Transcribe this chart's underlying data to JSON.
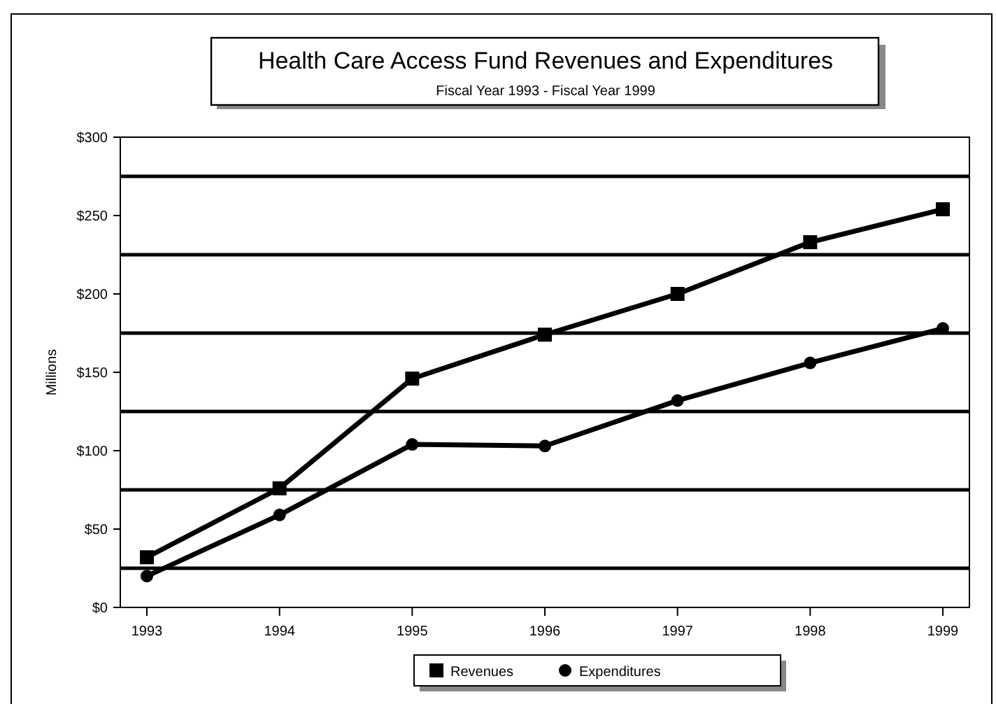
{
  "chart_data": {
    "type": "line",
    "title": "Health Care Access Fund Revenues and Expenditures",
    "subtitle": "Fiscal Year 1993 - Fiscal Year 1999",
    "ylabel": "Millions",
    "categories": [
      "1993",
      "1994",
      "1995",
      "1996",
      "1997",
      "1998",
      "1999"
    ],
    "series": [
      {
        "name": "Revenues",
        "color": "#000000",
        "marker": "square",
        "values": [
          32,
          76,
          146,
          174,
          200,
          233,
          254
        ]
      },
      {
        "name": "Expenditures",
        "color": "#000000",
        "marker": "circle",
        "values": [
          20,
          59,
          104,
          103,
          132,
          156,
          178
        ]
      }
    ],
    "ylim": [
      0,
      300
    ],
    "yticks": [
      {
        "value": 0,
        "label": "$0"
      },
      {
        "value": 50,
        "label": "$50"
      },
      {
        "value": 100,
        "label": "$100"
      },
      {
        "value": 150,
        "label": "$150"
      },
      {
        "value": 200,
        "label": "$200"
      },
      {
        "value": 250,
        "label": "$250"
      },
      {
        "value": 300,
        "label": "$300"
      }
    ],
    "ref_lines": [
      {
        "axis": "y",
        "value": 25,
        "color": "#000000"
      },
      {
        "axis": "y",
        "value": 75,
        "color": "#000000"
      },
      {
        "axis": "y",
        "value": 125,
        "color": "#000000"
      },
      {
        "axis": "y",
        "value": 175,
        "color": "#000000"
      },
      {
        "axis": "y",
        "value": 225,
        "color": "#000000"
      },
      {
        "axis": "y",
        "value": 275,
        "color": "#000000"
      }
    ],
    "grid": false,
    "legend": "bottom",
    "line_style": "solid"
  }
}
